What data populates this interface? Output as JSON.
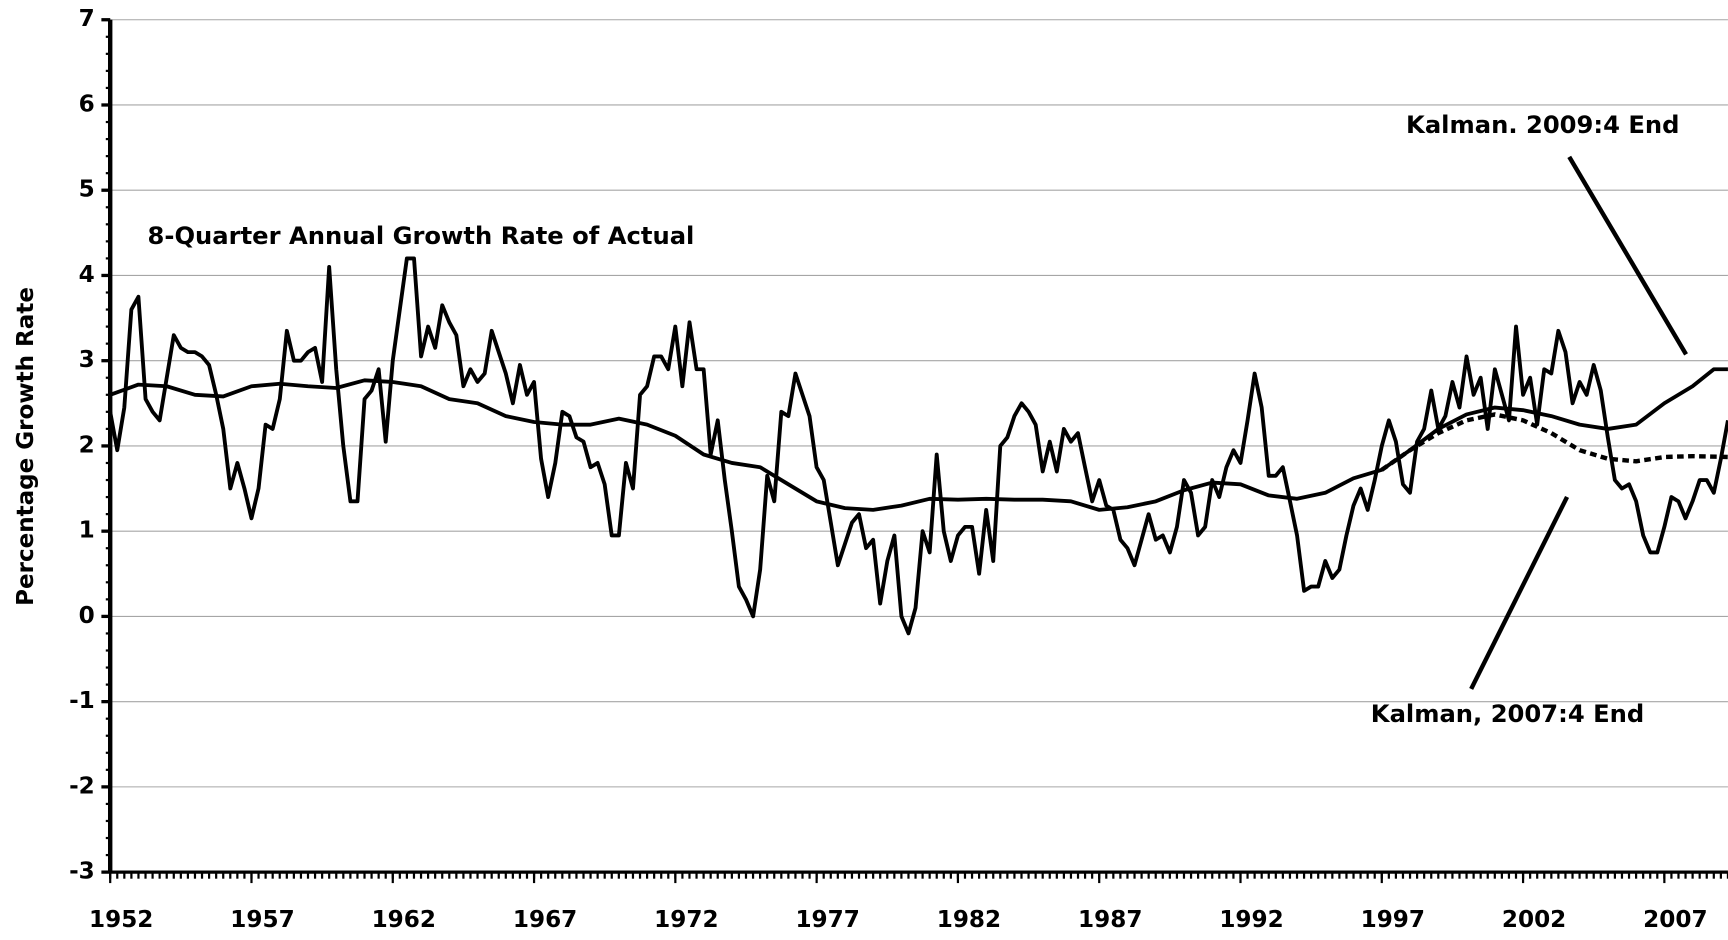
{
  "chart_data": {
    "type": "line",
    "y_axis_label": "Percentage Growth Rate",
    "xlim": [
      1952,
      2009.25
    ],
    "xticks": [
      1952,
      1957,
      1962,
      1967,
      1972,
      1977,
      1982,
      1987,
      1992,
      1997,
      2002,
      2007
    ],
    "ylim": [
      -3,
      7
    ],
    "yticks": [
      -3,
      -2,
      -1,
      0,
      1,
      2,
      3,
      4,
      5,
      6,
      7
    ],
    "grid": true,
    "series": [
      {
        "name": "8-Quarter Annual Growth Rate of Actual",
        "color": "#000000",
        "dashed": false,
        "x": [
          1952,
          1952.25,
          1952.5,
          1952.75,
          1953,
          1953.25,
          1953.5,
          1953.75,
          1954.25,
          1954.5,
          1954.75,
          1955,
          1955.25,
          1955.5,
          1955.75,
          1956,
          1956.25,
          1956.5,
          1956.75,
          1957,
          1957.25,
          1957.5,
          1957.75,
          1958,
          1958.25,
          1958.5,
          1958.75,
          1959,
          1959.25,
          1959.5,
          1959.75,
          1960,
          1960.25,
          1960.5,
          1960.75,
          1961,
          1961.25,
          1961.5,
          1961.75,
          1962,
          1962.5,
          1962.75,
          1963,
          1963.25,
          1963.5,
          1963.75,
          1964,
          1964.25,
          1964.5,
          1964.75,
          1965,
          1965.25,
          1965.5,
          1966,
          1966.25,
          1966.5,
          1966.75,
          1967,
          1967.25,
          1967.5,
          1967.75,
          1968,
          1968.25,
          1968.5,
          1968.75,
          1969,
          1969.25,
          1969.5,
          1969.75,
          1970,
          1970.25,
          1970.5,
          1970.75,
          1971,
          1971.25,
          1971.5,
          1971.75,
          1972,
          1972.25,
          1972.5,
          1972.75,
          1973,
          1973.25,
          1973.5,
          1973.75,
          1974,
          1974.25,
          1974.5,
          1974.75,
          1975,
          1975.25,
          1975.5,
          1975.75,
          1976,
          1976.25,
          1976.5,
          1976.75,
          1977,
          1977.25,
          1977.5,
          1977.75,
          1978,
          1978.25,
          1978.5,
          1978.75,
          1979,
          1979.25,
          1979.5,
          1979.75,
          1980,
          1980.25,
          1980.5,
          1980.75,
          1981,
          1981.25,
          1981.5,
          1981.75,
          1982,
          1982.25,
          1982.5,
          1982.75,
          1983,
          1983.25,
          1983.5,
          1983.75,
          1984,
          1984.25,
          1984.5,
          1984.75,
          1985,
          1985.25,
          1985.5,
          1985.75,
          1986,
          1986.25,
          1986.5,
          1986.75,
          1987,
          1987.25,
          1987.5,
          1987.75,
          1988,
          1988.25,
          1988.5,
          1988.75,
          1989,
          1989.25,
          1989.5,
          1989.75,
          1990,
          1990.25,
          1990.5,
          1990.75,
          1991,
          1991.25,
          1991.5,
          1991.75,
          1992,
          1992.25,
          1992.5,
          1992.75,
          1993,
          1993.25,
          1993.5,
          1993.75,
          1994,
          1994.25,
          1994.5,
          1994.75,
          1995,
          1995.25,
          1995.5,
          1995.75,
          1996,
          1996.25,
          1996.5,
          1996.75,
          1997,
          1997.25,
          1997.5,
          1997.75,
          1998,
          1998.25,
          1998.5,
          1998.75,
          1999,
          1999.25,
          1999.5,
          1999.75,
          2000,
          2000.25,
          2000.5,
          2000.75,
          2001,
          2001.25,
          2001.5,
          2001.75,
          2002,
          2002.25,
          2002.5,
          2002.75,
          2003,
          2003.25,
          2003.5,
          2003.75,
          2004,
          2004.25,
          2004.5,
          2004.75,
          2005,
          2005.25,
          2005.5,
          2005.75,
          2006,
          2006.25,
          2006.5,
          2006.75,
          2007,
          2007.25,
          2007.5,
          2007.75,
          2008,
          2008.25,
          2008.5,
          2008.75,
          2009,
          2009.25
        ],
        "values": [
          2.4,
          1.95,
          2.45,
          3.6,
          3.75,
          2.55,
          2.4,
          2.3,
          3.3,
          3.15,
          3.1,
          3.1,
          3.05,
          2.95,
          2.6,
          2.2,
          1.5,
          1.8,
          1.5,
          1.15,
          1.5,
          2.25,
          2.2,
          2.55,
          3.35,
          3.0,
          3.0,
          3.1,
          3.15,
          2.75,
          4.1,
          2.9,
          2.0,
          1.35,
          1.35,
          2.55,
          2.65,
          2.9,
          2.05,
          3.0,
          4.2,
          4.2,
          3.05,
          3.4,
          3.15,
          3.65,
          3.45,
          3.3,
          2.7,
          2.9,
          2.75,
          2.85,
          3.35,
          2.85,
          2.5,
          2.95,
          2.6,
          2.75,
          1.85,
          1.4,
          1.8,
          2.4,
          2.35,
          2.1,
          2.05,
          1.75,
          1.8,
          1.55,
          0.95,
          0.95,
          1.8,
          1.5,
          2.6,
          2.7,
          3.05,
          3.05,
          2.9,
          3.4,
          2.7,
          3.45,
          2.9,
          2.9,
          1.9,
          2.3,
          1.6,
          1.0,
          0.35,
          0.2,
          0.0,
          0.55,
          1.65,
          1.35,
          2.4,
          2.35,
          2.85,
          2.6,
          2.35,
          1.75,
          1.6,
          1.1,
          0.6,
          0.85,
          1.1,
          1.2,
          0.8,
          0.9,
          0.15,
          0.65,
          0.95,
          0.0,
          -0.2,
          0.1,
          1.0,
          0.75,
          1.9,
          1.0,
          0.65,
          0.95,
          1.05,
          1.05,
          0.5,
          1.25,
          0.65,
          2.0,
          2.1,
          2.35,
          2.5,
          2.4,
          2.25,
          1.7,
          2.05,
          1.7,
          2.2,
          2.05,
          2.15,
          1.75,
          1.35,
          1.6,
          1.3,
          1.25,
          0.9,
          0.8,
          0.6,
          0.9,
          1.2,
          0.9,
          0.95,
          0.75,
          1.05,
          1.6,
          1.45,
          0.95,
          1.05,
          1.6,
          1.4,
          1.75,
          1.95,
          1.8,
          2.3,
          2.85,
          2.45,
          1.65,
          1.65,
          1.75,
          1.35,
          0.95,
          0.3,
          0.35,
          0.35,
          0.65,
          0.45,
          0.55,
          0.95,
          1.3,
          1.5,
          1.25,
          1.6,
          2.0,
          2.3,
          2.05,
          1.55,
          1.45,
          2.05,
          2.2,
          2.65,
          2.2,
          2.35,
          2.75,
          2.45,
          3.05,
          2.6,
          2.8,
          2.2,
          2.9,
          2.6,
          2.3,
          3.4,
          2.6,
          2.8,
          2.25,
          2.9,
          2.85,
          3.35,
          3.1,
          2.5,
          2.75,
          2.6,
          2.95,
          2.65,
          2.1,
          1.6,
          1.5,
          1.55,
          1.35,
          0.95,
          0.75,
          0.75,
          1.05,
          1.4,
          1.35,
          1.15,
          1.35,
          1.6,
          1.6,
          1.45,
          1.85,
          2.3
        ]
      },
      {
        "name": "Kalman. 2009:4 End",
        "color": "#000000",
        "dashed": false,
        "x": [
          1952,
          1953,
          1954,
          1955,
          1956,
          1957,
          1958,
          1959,
          1960,
          1961,
          1962,
          1963,
          1964,
          1965,
          1966,
          1967,
          1968,
          1969,
          1970,
          1971,
          1972,
          1973,
          1974,
          1975,
          1976,
          1977,
          1978,
          1979,
          1980,
          1981,
          1982,
          1983,
          1984,
          1985,
          1986,
          1987,
          1988,
          1989,
          1990,
          1991,
          1992,
          1993,
          1994,
          1995,
          1996,
          1997,
          1998,
          1999,
          2000,
          2001,
          2002,
          2003,
          2004,
          2005,
          2006,
          2007,
          2008,
          2008.75,
          2009.25
        ],
        "values": [
          2.6,
          2.72,
          2.7,
          2.6,
          2.58,
          2.7,
          2.73,
          2.7,
          2.68,
          2.77,
          2.75,
          2.7,
          2.55,
          2.5,
          2.35,
          2.28,
          2.25,
          2.25,
          2.32,
          2.25,
          2.12,
          1.9,
          1.8,
          1.75,
          1.55,
          1.35,
          1.27,
          1.25,
          1.3,
          1.38,
          1.37,
          1.38,
          1.37,
          1.37,
          1.35,
          1.25,
          1.28,
          1.35,
          1.48,
          1.57,
          1.55,
          1.42,
          1.38,
          1.45,
          1.62,
          1.72,
          1.95,
          2.2,
          2.37,
          2.45,
          2.42,
          2.35,
          2.25,
          2.2,
          2.25,
          2.5,
          2.7,
          2.9,
          2.9
        ]
      },
      {
        "name": "Kalman, 2007:4 End",
        "color": "#000000",
        "dashed": true,
        "x": [
          1997,
          1998,
          1999,
          2000,
          2001,
          2002,
          2003,
          2004,
          2005,
          2006,
          2007,
          2008,
          2009.25
        ],
        "values": [
          1.72,
          1.95,
          2.15,
          2.3,
          2.37,
          2.3,
          2.15,
          1.95,
          1.85,
          1.82,
          1.87,
          1.88,
          1.87
        ]
      }
    ]
  }
}
